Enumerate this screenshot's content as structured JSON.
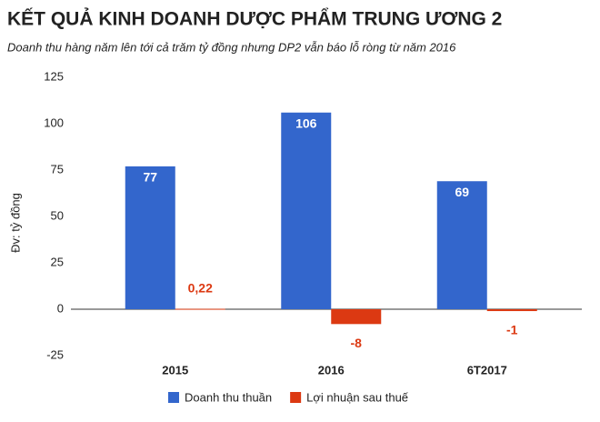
{
  "chart_data": {
    "type": "bar",
    "title": "KẾT QUẢ KINH DOANH DƯỢC PHẨM TRUNG ƯƠNG 2",
    "subtitle": "Doanh thu hàng năm lên tới cả trăm tỷ đồng nhưng DP2 vẫn báo lỗ ròng từ năm 2016",
    "y_label": "Đv: tỷ đồng",
    "categories": [
      "2015",
      "2016",
      "6T2017"
    ],
    "series": [
      {
        "name": "Doanh thu thuần",
        "color": "#3366cc",
        "values": [
          77,
          106,
          69
        ]
      },
      {
        "name": "Lợi nhuận sau thuế",
        "color": "#dc3912",
        "values": [
          0.22,
          -8,
          -1
        ],
        "value_labels": [
          "0,22",
          "-8",
          "-1"
        ]
      }
    ],
    "ylim": [
      -25,
      125
    ],
    "yticks": [
      -25,
      0,
      25,
      50,
      75,
      100,
      125
    ],
    "grid": false,
    "legend": "bottom"
  }
}
